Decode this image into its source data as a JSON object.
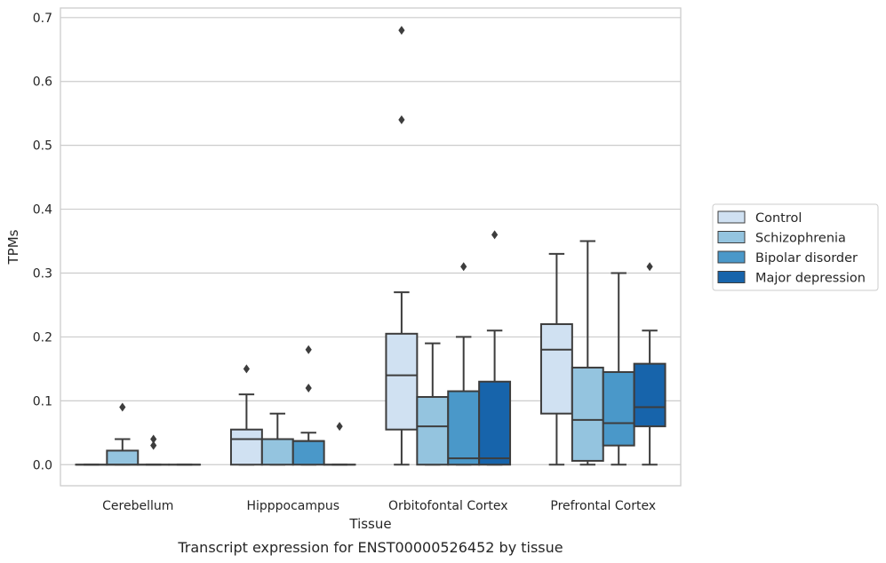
{
  "caption": "Transcript expression for ENST00000526452 by tissue",
  "chart_data": {
    "type": "box",
    "xlabel": "Tissue",
    "ylabel": "TPMs",
    "ylim": [
      -0.033,
      0.715
    ],
    "yticks": [
      0.0,
      0.1,
      0.2,
      0.3,
      0.4,
      0.5,
      0.6,
      0.7
    ],
    "ytick_labels": [
      "0.0",
      "0.1",
      "0.2",
      "0.3",
      "0.4",
      "0.5",
      "0.6",
      "0.7"
    ],
    "grid": "horizontal",
    "legend_position": "right",
    "categories": [
      "Cerebellum",
      "Hipppocampus",
      "Orbitofontal Cortex",
      "Prefrontal Cortex"
    ],
    "series": [
      {
        "name": "Control",
        "color": "#d0e1f2",
        "boxes": [
          {
            "low": 0,
            "q1": 0,
            "median": 0,
            "q3": 0,
            "high": 0,
            "outliers": []
          },
          {
            "low": 0,
            "q1": 0,
            "median": 0.04,
            "q3": 0.055,
            "high": 0.11,
            "outliers": [
              0.15
            ]
          },
          {
            "low": 0,
            "q1": 0.055,
            "median": 0.14,
            "q3": 0.205,
            "high": 0.27,
            "outliers": [
              0.68,
              0.54
            ]
          },
          {
            "low": 0,
            "q1": 0.08,
            "median": 0.18,
            "q3": 0.22,
            "high": 0.33,
            "outliers": []
          }
        ]
      },
      {
        "name": "Schizophrenia",
        "color": "#94c4df",
        "boxes": [
          {
            "low": 0,
            "q1": 0,
            "median": 0,
            "q3": 0.022,
            "high": 0.04,
            "outliers": [
              0.09
            ]
          },
          {
            "low": 0,
            "q1": 0,
            "median": 0.04,
            "q3": 0.04,
            "high": 0.08,
            "outliers": []
          },
          {
            "low": 0,
            "q1": 0,
            "median": 0.06,
            "q3": 0.106,
            "high": 0.19,
            "outliers": []
          },
          {
            "low": 0,
            "q1": 0.006,
            "median": 0.07,
            "q3": 0.152,
            "high": 0.35,
            "outliers": []
          }
        ]
      },
      {
        "name": "Bipolar disorder",
        "color": "#4a98c9",
        "boxes": [
          {
            "low": 0,
            "q1": 0,
            "median": 0,
            "q3": 0,
            "high": 0,
            "outliers": [
              0.04,
              0.03
            ]
          },
          {
            "low": 0,
            "q1": 0,
            "median": 0.037,
            "q3": 0.037,
            "high": 0.05,
            "outliers": [
              0.18,
              0.12
            ]
          },
          {
            "low": 0,
            "q1": 0,
            "median": 0.01,
            "q3": 0.115,
            "high": 0.2,
            "outliers": [
              0.31
            ]
          },
          {
            "low": 0,
            "q1": 0.03,
            "median": 0.065,
            "q3": 0.145,
            "high": 0.3,
            "outliers": []
          }
        ]
      },
      {
        "name": "Major depression",
        "color": "#1764ab",
        "boxes": [
          {
            "low": 0,
            "q1": 0,
            "median": 0,
            "q3": 0,
            "high": 0,
            "outliers": []
          },
          {
            "low": 0,
            "q1": 0,
            "median": 0,
            "q3": 0,
            "high": 0,
            "outliers": [
              0.06
            ]
          },
          {
            "low": 0,
            "q1": 0,
            "median": 0.01,
            "q3": 0.13,
            "high": 0.21,
            "outliers": [
              0.36
            ]
          },
          {
            "low": 0,
            "q1": 0.06,
            "median": 0.09,
            "q3": 0.158,
            "high": 0.21,
            "outliers": [
              0.31
            ]
          }
        ]
      }
    ]
  }
}
